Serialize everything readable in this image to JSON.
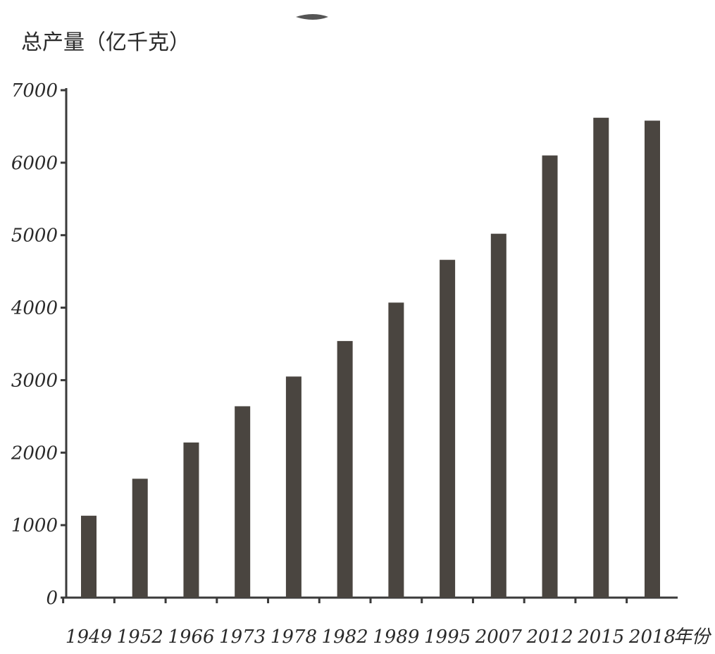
{
  "chart_data": {
    "type": "bar",
    "title": "",
    "ylabel": "总产量（亿千克）",
    "xlabel": "年份",
    "categories": [
      "1949",
      "1952",
      "1966",
      "1973",
      "1978",
      "1982",
      "1989",
      "1995",
      "2007",
      "2012",
      "2015",
      "2018"
    ],
    "values": [
      1130,
      1640,
      2140,
      2640,
      3050,
      3540,
      4070,
      4660,
      5020,
      6100,
      6620,
      6580
    ],
    "yticks": [
      "0",
      "1000",
      "2000",
      "3000",
      "4000",
      "5000",
      "6000",
      "7000"
    ],
    "ylim": [
      0,
      7000
    ],
    "grid": false,
    "legend": "none",
    "bar_color": "#4a4540"
  }
}
